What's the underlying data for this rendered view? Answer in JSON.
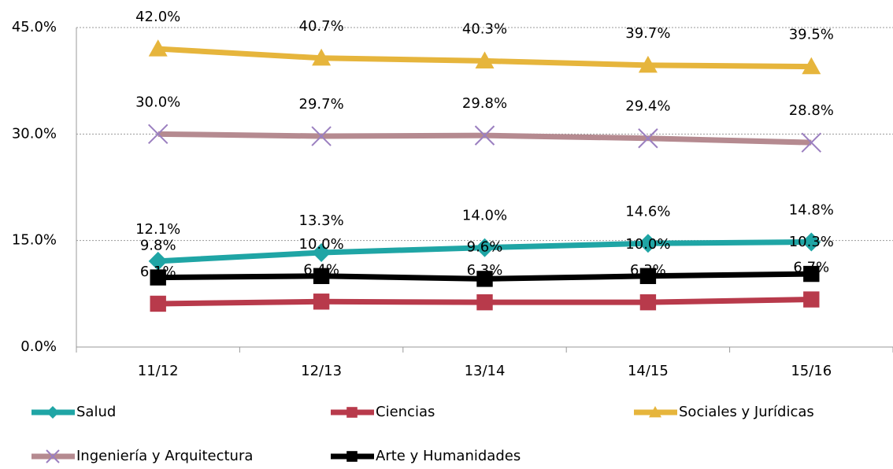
{
  "chart_data": {
    "type": "line",
    "categories": [
      "11/12",
      "12/13",
      "13/14",
      "14/15",
      "15/16"
    ],
    "ylim": [
      0,
      45
    ],
    "yticks": [
      {
        "value": 0,
        "label": "0.0%"
      },
      {
        "value": 15,
        "label": "15.0%"
      },
      {
        "value": 30,
        "label": "30.0%"
      },
      {
        "value": 45,
        "label": "45.0%"
      }
    ],
    "grid": true,
    "legend": "bottom",
    "series": [
      {
        "name": "Salud",
        "color": "#1fa5a5",
        "marker": "diamond",
        "values": [
          12.1,
          13.3,
          14.0,
          14.6,
          14.8
        ],
        "value_labels": [
          "12.1%",
          "13.3%",
          "14.0%",
          "14.6%",
          "14.8%"
        ]
      },
      {
        "name": "Ciencias",
        "color": "#b83a4b",
        "marker": "square",
        "values": [
          6.1,
          6.4,
          6.3,
          6.3,
          6.7
        ],
        "value_labels": [
          "6.1%",
          "6.4%",
          "6.3%",
          "6.3%",
          "6.7%"
        ]
      },
      {
        "name": "Sociales y Jurídicas",
        "color": "#e6b53c",
        "marker": "triangle",
        "values": [
          42.0,
          40.7,
          40.3,
          39.7,
          39.5
        ],
        "value_labels": [
          "42.0%",
          "40.7%",
          "40.3%",
          "39.7%",
          "39.5%"
        ]
      },
      {
        "name": "Ingeniería y Arquitectura",
        "color": "#b58a90",
        "marker": "x",
        "values": [
          30.0,
          29.7,
          29.8,
          29.4,
          28.8
        ],
        "value_labels": [
          "30.0%",
          "29.7%",
          "29.8%",
          "29.4%",
          "28.8%"
        ]
      },
      {
        "name": "Arte y Humanidades",
        "color": "#000000",
        "marker": "square",
        "values": [
          9.8,
          10.0,
          9.6,
          10.0,
          10.3
        ],
        "value_labels": [
          "9.8%",
          "10.0%",
          "9.6%",
          "10.0%",
          "10.3%"
        ]
      }
    ]
  }
}
